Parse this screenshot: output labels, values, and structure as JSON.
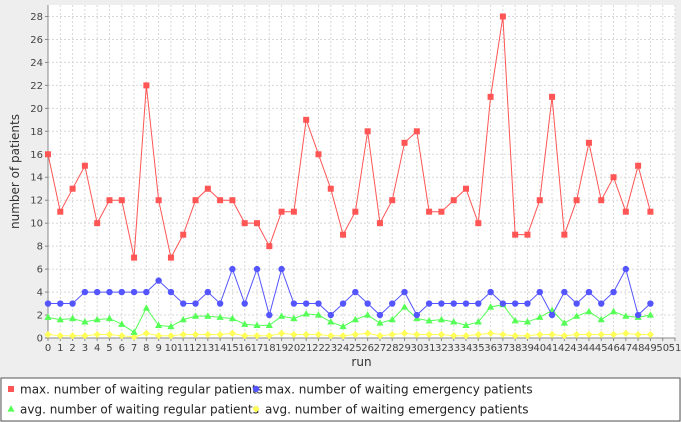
{
  "chart_data": {
    "type": "line",
    "xlabel": "run",
    "ylabel": "number of patients",
    "xlim": [
      0,
      51
    ],
    "ylim": [
      0,
      29
    ],
    "x_ticks": [
      0,
      1,
      2,
      3,
      4,
      5,
      6,
      7,
      8,
      9,
      10,
      11,
      12,
      13,
      14,
      15,
      16,
      17,
      18,
      19,
      20,
      21,
      22,
      23,
      24,
      25,
      26,
      27,
      28,
      29,
      30,
      31,
      32,
      33,
      34,
      35,
      36,
      37,
      38,
      39,
      40,
      41,
      42,
      43,
      44,
      45,
      46,
      47,
      48,
      49,
      50,
      51
    ],
    "y_ticks": [
      0,
      2,
      4,
      6,
      8,
      10,
      12,
      14,
      16,
      18,
      20,
      22,
      24,
      26,
      28
    ],
    "grid": true,
    "legend_position": "bottom",
    "x": [
      0,
      1,
      2,
      3,
      4,
      5,
      6,
      7,
      8,
      9,
      10,
      11,
      12,
      13,
      14,
      15,
      16,
      17,
      18,
      19,
      20,
      21,
      22,
      23,
      24,
      25,
      26,
      27,
      28,
      29,
      30,
      31,
      32,
      33,
      34,
      35,
      36,
      37,
      38,
      39,
      40,
      41,
      42,
      43,
      44,
      45,
      46,
      47,
      48,
      49
    ],
    "series": [
      {
        "name": "max. number of waiting regular patients",
        "color": "#ff5555",
        "marker": "square",
        "values": [
          16,
          11,
          13,
          15,
          10,
          12,
          12,
          7,
          22,
          12,
          7,
          9,
          12,
          13,
          12,
          12,
          10,
          10,
          8,
          11,
          11,
          19,
          16,
          13,
          9,
          11,
          18,
          10,
          12,
          17,
          18,
          11,
          11,
          12,
          13,
          10,
          21,
          28,
          9,
          9,
          12,
          21,
          9,
          12,
          17,
          12,
          14,
          11,
          15,
          11
        ]
      },
      {
        "name": "max. number of waiting emergency patients",
        "color": "#5555ff",
        "marker": "circle",
        "values": [
          3,
          3,
          3,
          4,
          4,
          4,
          4,
          4,
          4,
          5,
          4,
          3,
          3,
          4,
          3,
          6,
          3,
          6,
          2,
          6,
          3,
          3,
          3,
          2,
          3,
          4,
          3,
          2,
          3,
          4,
          2,
          3,
          3,
          3,
          3,
          3,
          4,
          3,
          3,
          3,
          4,
          2,
          4,
          3,
          4,
          3,
          4,
          6,
          2,
          3
        ]
      },
      {
        "name": "avg. number of waiting regular patients",
        "color": "#55ff55",
        "marker": "triangle",
        "values": [
          1.8,
          1.6,
          1.7,
          1.4,
          1.6,
          1.7,
          1.2,
          0.5,
          2.6,
          1.1,
          1.0,
          1.6,
          1.9,
          1.9,
          1.8,
          1.7,
          1.2,
          1.1,
          1.1,
          1.9,
          1.7,
          2.1,
          2.0,
          1.4,
          1.0,
          1.6,
          2.0,
          1.3,
          1.6,
          2.7,
          1.7,
          1.5,
          1.6,
          1.4,
          1.1,
          1.4,
          2.7,
          2.9,
          1.5,
          1.4,
          1.8,
          2.4,
          1.3,
          1.9,
          2.3,
          1.6,
          2.3,
          1.9,
          1.8,
          2.0
        ]
      },
      {
        "name": "avg. number of waiting emergency patients",
        "color": "#ffff55",
        "marker": "diamond",
        "values": [
          0.3,
          0.2,
          0.2,
          0.2,
          0.3,
          0.3,
          0.2,
          0.1,
          0.4,
          0.2,
          0.2,
          0.3,
          0.3,
          0.3,
          0.3,
          0.4,
          0.2,
          0.2,
          0.2,
          0.4,
          0.3,
          0.3,
          0.3,
          0.2,
          0.2,
          0.3,
          0.4,
          0.2,
          0.3,
          0.4,
          0.3,
          0.3,
          0.3,
          0.2,
          0.2,
          0.3,
          0.4,
          0.3,
          0.2,
          0.2,
          0.3,
          0.3,
          0.2,
          0.3,
          0.3,
          0.3,
          0.3,
          0.4,
          0.3,
          0.3
        ]
      }
    ]
  }
}
